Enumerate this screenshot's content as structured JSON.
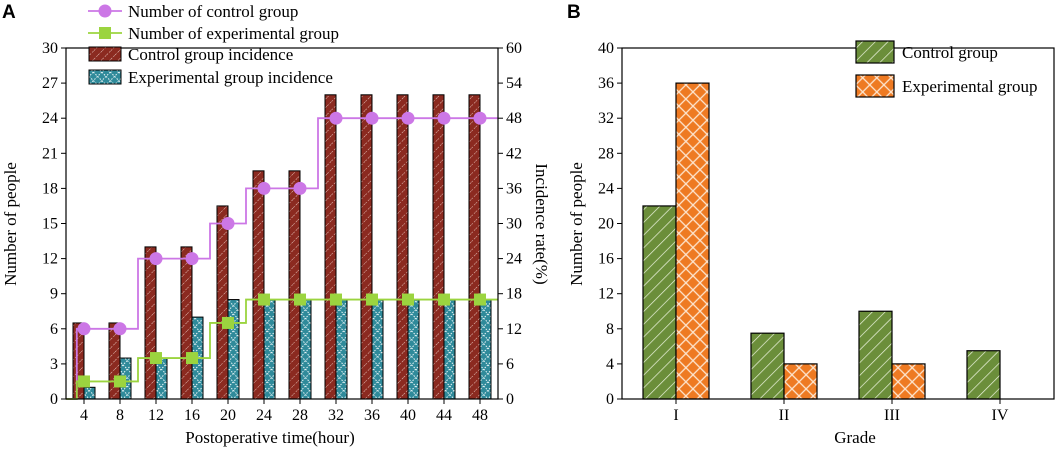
{
  "chart_data": [
    {
      "panel": "A",
      "type": "bar+line",
      "xlabel": "Postoperative time(hour)",
      "ylabel": "Number of people",
      "y2label": "Incidence rate(%)",
      "x": [
        4,
        8,
        12,
        16,
        20,
        24,
        28,
        32,
        36,
        40,
        44,
        48
      ],
      "ylim": [
        0,
        30
      ],
      "yticks": [
        0,
        3,
        6,
        9,
        12,
        15,
        18,
        21,
        24,
        27,
        30
      ],
      "y2lim": [
        0,
        60
      ],
      "y2ticks": [
        0,
        6,
        12,
        18,
        24,
        30,
        36,
        42,
        48,
        54,
        60
      ],
      "series": [
        {
          "name": "Number of control group",
          "kind": "step-line",
          "marker": "circle",
          "color": "#cc77e6",
          "values": [
            6,
            6,
            12,
            12,
            15,
            18,
            18,
            24,
            24,
            24,
            24,
            24
          ]
        },
        {
          "name": "Number of experimental group",
          "kind": "step-line",
          "marker": "square",
          "color": "#9bd43f",
          "values": [
            1.5,
            1.5,
            3.5,
            3.5,
            6.5,
            8.5,
            8.5,
            8.5,
            8.5,
            8.5,
            8.5,
            8.5
          ]
        },
        {
          "name": "Control group incidence",
          "kind": "bar",
          "axis": "right",
          "color": "#8b2a20",
          "values": [
            13,
            13,
            26,
            26,
            33,
            39,
            39,
            52,
            52,
            52,
            52,
            52
          ]
        },
        {
          "name": "Experimental group incidence",
          "kind": "bar",
          "axis": "right",
          "color": "#2f8a9a",
          "values": [
            2,
            7,
            7,
            14,
            17,
            17,
            17,
            17,
            17,
            17,
            17,
            17
          ]
        }
      ]
    },
    {
      "panel": "B",
      "type": "bar",
      "xlabel": "Grade",
      "ylabel": "Number of people",
      "categories": [
        "I",
        "II",
        "III",
        "IV"
      ],
      "ylim": [
        0,
        40
      ],
      "yticks": [
        0,
        4,
        8,
        12,
        16,
        20,
        24,
        28,
        32,
        36,
        40
      ],
      "series": [
        {
          "name": "Control group",
          "color": "#6b8e3a",
          "values": [
            22,
            7.5,
            10,
            5.5
          ]
        },
        {
          "name": "Experimental group",
          "color": "#ee7a22",
          "values": [
            36,
            4,
            4,
            0
          ]
        }
      ]
    }
  ]
}
